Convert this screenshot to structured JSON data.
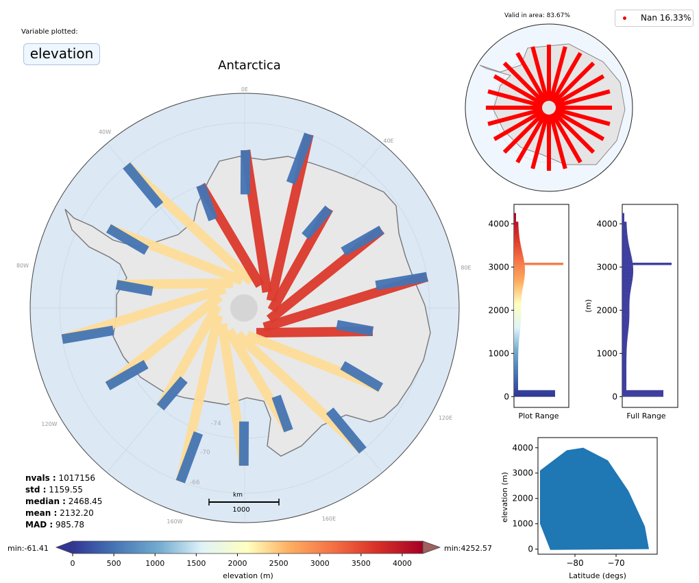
{
  "header": {
    "variable_label": "Variable plotted:",
    "variable_name": "elevation"
  },
  "map": {
    "title": "Antarctica",
    "lon_labels": [
      "0E",
      "40E",
      "80E",
      "120E",
      "160E",
      "160W",
      "120W",
      "80W",
      "40W"
    ],
    "lat_labels": [
      "-74",
      "-70",
      "-66"
    ],
    "scale_unit": "km",
    "scale_value": "1000"
  },
  "stats": {
    "nvals": {
      "label": "nvals :",
      "value": "1017156"
    },
    "std": {
      "label": "std :",
      "value": "1159.55"
    },
    "median": {
      "label": "median :",
      "value": "2468.45"
    },
    "mean": {
      "label": "mean :",
      "value": "2132.20"
    },
    "mad": {
      "label": "MAD :",
      "value": "985.78"
    }
  },
  "coverage": {
    "valid_text": "Valid in area: 83.67%",
    "legend_text": "Nan 16.33%",
    "nan_color": "#ff0000"
  },
  "chart_data": [
    {
      "type": "histogram",
      "name": "plot-range-histogram",
      "xlabel": "Plot Range",
      "ylim": [
        -250,
        4450
      ],
      "yticks": [
        0,
        1000,
        2000,
        3000,
        4000
      ],
      "colormap": "RdYlBu_r",
      "color_range": [
        0,
        4250
      ]
    },
    {
      "type": "histogram",
      "name": "full-range-histogram",
      "xlabel": "Full Range",
      "ylabel": "(m)",
      "ylim": [
        -250,
        4450
      ],
      "yticks": [
        0,
        1000,
        2000,
        3000,
        4000
      ],
      "color": "#3f3f9f"
    },
    {
      "type": "scatter",
      "name": "latitude-elevation-scatter",
      "xlabel": "Latitude (degs)",
      "ylabel": "elevation (m)",
      "xlim": [
        -89,
        -60
      ],
      "ylim": [
        -200,
        4400
      ],
      "xticks": [
        -80,
        -70
      ],
      "yticks": [
        0,
        1000,
        2000,
        3000,
        4000
      ],
      "color": "#1f77b4"
    },
    {
      "type": "colorbar",
      "xlabel": "elevation (m)",
      "ticks": [
        0,
        500,
        1000,
        1500,
        2000,
        2500,
        3000,
        3500,
        4000
      ],
      "range": [
        0,
        4250
      ],
      "min_label": "min:-61.41",
      "max_label": "min:4252.57"
    }
  ]
}
